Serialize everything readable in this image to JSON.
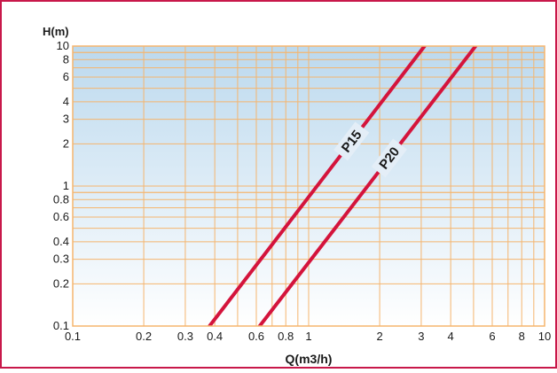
{
  "chart_data": {
    "type": "line",
    "xlabel": "Q(m3/h)",
    "ylabel": "H(m)",
    "xscale": "log",
    "yscale": "log",
    "xlim": [
      0.1,
      10
    ],
    "ylim": [
      0.1,
      10
    ],
    "x_ticks": [
      0.1,
      0.2,
      0.3,
      0.4,
      0.6,
      0.8,
      1,
      2,
      3,
      4,
      6,
      8,
      10
    ],
    "x_tick_labels": [
      "0.1",
      "0.2",
      "0.3",
      "0.4",
      "0.6",
      "0.8",
      "1",
      "2",
      "3",
      "4",
      "6",
      "8",
      "10"
    ],
    "y_ticks": [
      0.1,
      0.2,
      0.3,
      0.4,
      0.6,
      0.8,
      1,
      2,
      3,
      4,
      6,
      8,
      10
    ],
    "y_tick_labels": [
      "0.1",
      "0.2",
      "0.3",
      "0.4",
      "0.6",
      "0.8",
      "1",
      "2",
      "3",
      "4",
      "6",
      "8",
      "10"
    ],
    "grid": true,
    "series": [
      {
        "name": "P15",
        "color": "#d4143c",
        "x": [
          0.38,
          3.1
        ],
        "y": [
          0.1,
          10
        ]
      },
      {
        "name": "P20",
        "color": "#d4143c",
        "x": [
          0.62,
          5.1
        ],
        "y": [
          0.1,
          10
        ]
      }
    ],
    "colors": {
      "frame": "#c8184a",
      "grid": "#f5b56e",
      "background_top": "#bcd9ee",
      "background_bottom": "#ffffff"
    }
  }
}
